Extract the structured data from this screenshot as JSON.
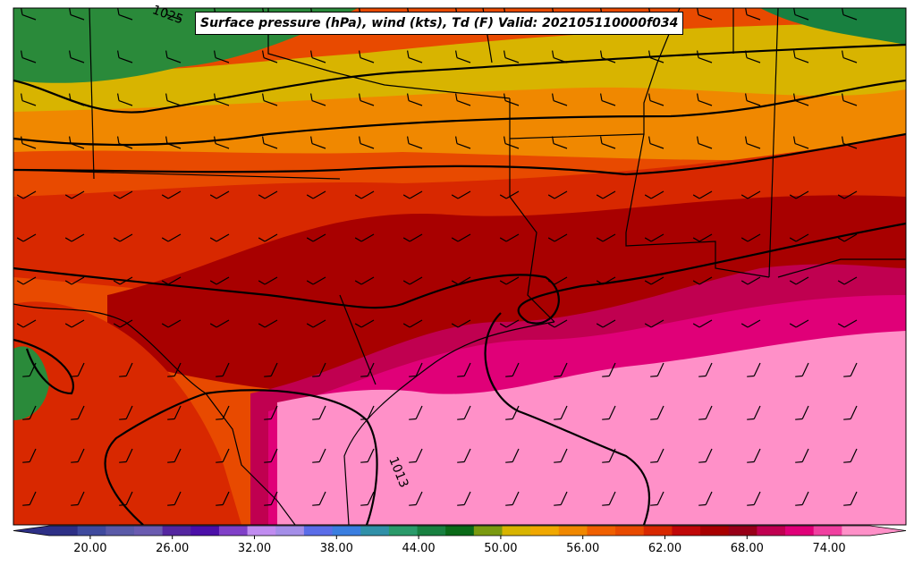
{
  "title": "Surface pressure (hPa), wind (kts), Td (F) Valid: 202105110000f034",
  "contour_labels": [
    "1025",
    "1013"
  ],
  "colorbar": {
    "ticks": [
      "20.00",
      "26.00",
      "32.00",
      "38.00",
      "44.00",
      "50.00",
      "56.00",
      "62.00",
      "68.00",
      "74.00"
    ],
    "min": 17,
    "max": 77,
    "colors": [
      "#2d2f86",
      "#3f4a9e",
      "#5a5aa8",
      "#6a5bb0",
      "#5426a0",
      "#4b0fa8",
      "#8040c8",
      "#c08cf0",
      "#a48ee8",
      "#5a6de8",
      "#3a7ee0",
      "#3090a8",
      "#2a9a6a",
      "#188040",
      "#0a6a18",
      "#7a9a10",
      "#d8b400",
      "#f0a800",
      "#f08800",
      "#f06000",
      "#e84a00",
      "#d82800",
      "#c00808",
      "#a80000",
      "#980018",
      "#c00050",
      "#e00078",
      "#f040a0",
      "#ff90c8"
    ]
  }
}
